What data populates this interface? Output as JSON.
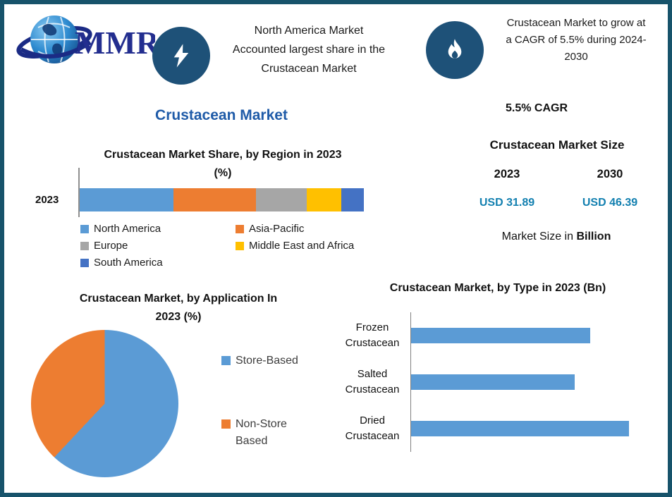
{
  "logo": {
    "text": "MMR"
  },
  "header": {
    "callout1": {
      "icon": "lightning-icon",
      "lines": [
        "North America Market",
        "Accounted largest share in the",
        "Crustacean Market"
      ]
    },
    "callout2": {
      "icon": "flame-icon",
      "lines": [
        "Crustacean Market to grow at",
        "a CAGR of 5.5% during 2024-",
        "2030"
      ]
    }
  },
  "main_title": "Crustacean Market",
  "market_size": {
    "cagr_label": "5.5% CAGR",
    "title": "Crustacean Market Size",
    "columns": [
      {
        "year": "2023",
        "value": "USD 31.89"
      },
      {
        "year": "2030",
        "value": "USD 46.39"
      }
    ],
    "note_prefix": "Market Size in",
    "note_bold": "Billion",
    "value_color": "#1380B0"
  },
  "colors": {
    "border": "#17536B",
    "icon_circle": "#1E5178",
    "title_blue": "#1F5BA8",
    "axis_gray": "#808080"
  },
  "chart_data": [
    {
      "type": "bar",
      "subtype": "stacked-horizontal",
      "title": "Crustacean Market Share, by Region in 2023 (%)",
      "categories": [
        "2023"
      ],
      "series": [
        {
          "name": "North America",
          "values": [
            33
          ],
          "color": "#5B9BD5"
        },
        {
          "name": "Asia-Pacific",
          "values": [
            29
          ],
          "color": "#ED7D31"
        },
        {
          "name": "Europe",
          "values": [
            18
          ],
          "color": "#A6A6A6"
        },
        {
          "name": "Middle East and Africa",
          "values": [
            12
          ],
          "color": "#FFC000"
        },
        {
          "name": "South America",
          "values": [
            8
          ],
          "color": "#4472C4"
        }
      ],
      "xlim": [
        0,
        100
      ],
      "legend_position": "bottom"
    },
    {
      "type": "pie",
      "title": "Crustacean Market, by Application In 2023 (%)",
      "labels": [
        "Store-Based",
        "Non-Store Based"
      ],
      "values": [
        62,
        38
      ],
      "colors": [
        "#5B9BD5",
        "#ED7D31"
      ],
      "legend_position": "right"
    },
    {
      "type": "bar",
      "subtype": "horizontal",
      "title": "Crustacean Market, by Type in 2023 (Bn)",
      "categories": [
        "Frozen Crustacean",
        "Salted Crustacean",
        "Dried Crustacean"
      ],
      "values": [
        10.2,
        9.3,
        12.4
      ],
      "xlim": [
        0,
        14
      ],
      "color": "#5B9BD5"
    }
  ]
}
